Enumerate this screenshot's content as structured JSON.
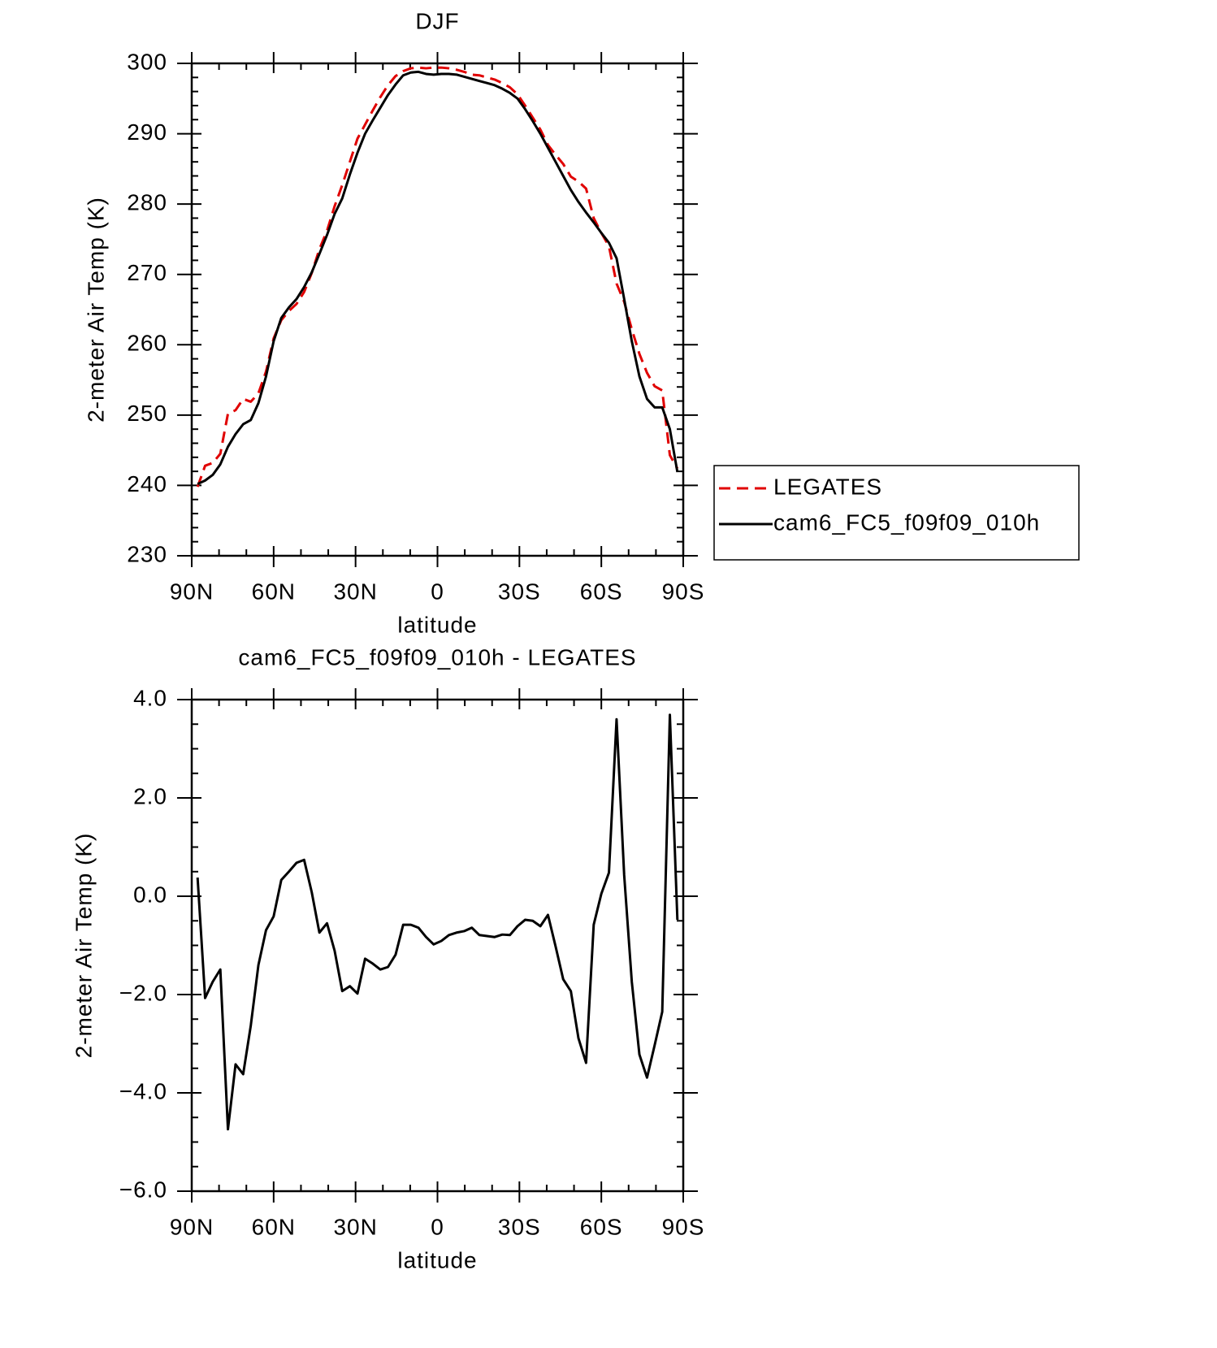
{
  "chart_data": [
    {
      "type": "line",
      "title": "DJF",
      "x_label": "latitude",
      "y_label": "2-meter Air Temp (K)",
      "x": [
        87.86,
        85.1,
        82.31,
        79.53,
        76.74,
        73.95,
        71.16,
        68.37,
        65.58,
        62.79,
        60.0,
        57.21,
        54.42,
        51.63,
        48.84,
        46.04,
        43.25,
        40.46,
        37.67,
        34.88,
        32.09,
        29.3,
        26.51,
        23.72,
        20.93,
        18.14,
        15.35,
        12.56,
        9.77,
        6.98,
        4.19,
        1.4,
        -1.4,
        -4.19,
        -6.98,
        -9.77,
        -12.56,
        -15.35,
        -18.14,
        -20.93,
        -23.72,
        -26.51,
        -29.3,
        -32.09,
        -34.88,
        -37.67,
        -40.46,
        -43.25,
        -46.04,
        -48.84,
        -51.63,
        -54.42,
        -57.21,
        -60.0,
        -62.79,
        -65.58,
        -68.37,
        -71.16,
        -73.95,
        -76.74,
        -79.53,
        -82.31,
        -85.1,
        -87.86
      ],
      "series": [
        {
          "name": "LEGATES",
          "color": "#e00000",
          "dashed": true,
          "values": [
            239.8,
            242.8,
            243.2,
            244.5,
            250.2,
            250.7,
            252.3,
            251.9,
            253.1,
            256.2,
            260.9,
            263.5,
            264.8,
            265.8,
            267.5,
            270.2,
            273.6,
            276.2,
            279.7,
            282.7,
            286.0,
            289.3,
            291.3,
            293.3,
            295.2,
            296.9,
            298.2,
            298.9,
            299.3,
            299.4,
            299.3,
            299.4,
            299.4,
            299.3,
            299.1,
            298.8,
            298.4,
            298.3,
            298.0,
            297.7,
            297.2,
            296.6,
            295.6,
            294.0,
            292.3,
            290.6,
            288.4,
            287.0,
            285.7,
            283.9,
            283.2,
            282.2,
            278.0,
            275.9,
            274.0,
            268.7,
            266.1,
            262.2,
            258.7,
            256.0,
            254.1,
            253.5,
            244.3,
            242.4
          ]
        },
        {
          "name": "cam6_FC5_f09f09_010h",
          "color": "#000000",
          "dashed": false,
          "values": [
            240.2,
            240.7,
            241.5,
            243.0,
            245.5,
            247.3,
            248.7,
            249.3,
            251.7,
            255.5,
            260.5,
            263.8,
            265.3,
            266.5,
            268.2,
            270.3,
            272.9,
            275.6,
            278.6,
            280.8,
            284.2,
            287.3,
            290.0,
            291.9,
            293.7,
            295.5,
            297.0,
            298.3,
            298.7,
            298.8,
            298.5,
            298.4,
            298.5,
            298.5,
            298.4,
            298.1,
            297.8,
            297.5,
            297.2,
            296.9,
            296.4,
            295.8,
            295.0,
            293.5,
            291.8,
            290.0,
            288.0,
            286.0,
            284.0,
            282.0,
            280.3,
            278.8,
            277.4,
            275.9,
            274.5,
            272.3,
            266.5,
            260.5,
            255.5,
            252.3,
            251.1,
            251.1,
            248.0,
            241.9
          ]
        }
      ],
      "xlim": [
        90,
        -90
      ],
      "xticks": [
        {
          "value": 90,
          "label": "90N"
        },
        {
          "value": 60,
          "label": "60N"
        },
        {
          "value": 30,
          "label": "30N"
        },
        0,
        {
          "value": -30,
          "label": "30S"
        },
        {
          "value": -60,
          "label": "60S"
        },
        {
          "value": -90,
          "label": "90S"
        }
      ],
      "xminorticks": [
        80,
        70,
        50,
        40,
        20,
        10,
        -10,
        -20,
        -40,
        -50,
        -70,
        -80
      ],
      "ylim": [
        230,
        300
      ],
      "yticks": [
        230,
        240,
        250,
        260,
        270,
        280,
        290,
        300
      ],
      "yminorticks": [
        232,
        234,
        236,
        238,
        242,
        244,
        246,
        248,
        252,
        254,
        256,
        258,
        262,
        264,
        266,
        268,
        272,
        274,
        276,
        278,
        282,
        284,
        286,
        288,
        292,
        294,
        296,
        298
      ],
      "legend": "outside-right"
    },
    {
      "type": "line",
      "title": "cam6_FC5_f09f09_010h - LEGATES",
      "x_label": "latitude",
      "y_label": "2-meter Air Temp (K)",
      "x": [
        87.86,
        85.1,
        82.31,
        79.53,
        76.74,
        73.95,
        71.16,
        68.37,
        65.58,
        62.79,
        60.0,
        57.21,
        54.42,
        51.63,
        48.84,
        46.04,
        43.25,
        40.46,
        37.67,
        34.88,
        32.09,
        29.3,
        26.51,
        23.72,
        20.93,
        18.14,
        15.35,
        12.56,
        9.77,
        6.98,
        4.19,
        1.4,
        -1.4,
        -4.19,
        -6.98,
        -9.77,
        -12.56,
        -15.35,
        -18.14,
        -20.93,
        -23.72,
        -26.51,
        -29.3,
        -32.09,
        -34.88,
        -37.67,
        -40.46,
        -43.25,
        -46.04,
        -48.84,
        -51.63,
        -54.42,
        -57.21,
        -60.0,
        -62.79,
        -65.58,
        -68.37,
        -71.16,
        -73.95,
        -76.74,
        -79.53,
        -82.31,
        -85.1,
        -87.86
      ],
      "series": [
        {
          "color": "#000000",
          "dashed": false,
          "values": [
            0.38,
            -2.07,
            -1.74,
            -1.49,
            -4.74,
            -3.42,
            -3.62,
            -2.63,
            -1.4,
            -0.69,
            -0.41,
            0.33,
            0.5,
            0.68,
            0.74,
            0.08,
            -0.74,
            -0.55,
            -1.11,
            -1.93,
            -1.83,
            -1.98,
            -1.27,
            -1.37,
            -1.49,
            -1.44,
            -1.19,
            -0.58,
            -0.58,
            -0.64,
            -0.83,
            -0.98,
            -0.91,
            -0.79,
            -0.74,
            -0.71,
            -0.64,
            -0.79,
            -0.81,
            -0.83,
            -0.78,
            -0.79,
            -0.61,
            -0.48,
            -0.5,
            -0.61,
            -0.38,
            -1.02,
            -1.69,
            -1.93,
            -2.89,
            -3.39,
            -0.58,
            0.05,
            0.48,
            3.6,
            0.43,
            -1.74,
            -3.22,
            -3.69,
            -3.03,
            -2.35,
            3.69,
            -0.48
          ]
        }
      ],
      "xlim": [
        90,
        -90
      ],
      "xticks": [
        {
          "value": 90,
          "label": "90N"
        },
        {
          "value": 60,
          "label": "60N"
        },
        {
          "value": 30,
          "label": "30N"
        },
        0,
        {
          "value": -30,
          "label": "30S"
        },
        {
          "value": -60,
          "label": "60S"
        },
        {
          "value": -90,
          "label": "90S"
        }
      ],
      "xminorticks": [
        80,
        70,
        50,
        40,
        20,
        10,
        -10,
        -20,
        -40,
        -50,
        -70,
        -80
      ],
      "ylim": [
        -6,
        4
      ],
      "yticks": [
        {
          "value": -6,
          "label": "−6.0"
        },
        {
          "value": -4,
          "label": "−4.0"
        },
        {
          "value": -2,
          "label": "−2.0"
        },
        {
          "value": 0,
          "label": "0.0"
        },
        {
          "value": 2,
          "label": "2.0"
        },
        {
          "value": 4,
          "label": "4.0"
        }
      ],
      "yminorticks": [
        -5.5,
        -5,
        -4.5,
        -3.5,
        -3,
        -2.5,
        -1.5,
        -1,
        -0.5,
        0.5,
        1,
        1.5,
        2.5,
        3,
        3.5
      ]
    }
  ]
}
